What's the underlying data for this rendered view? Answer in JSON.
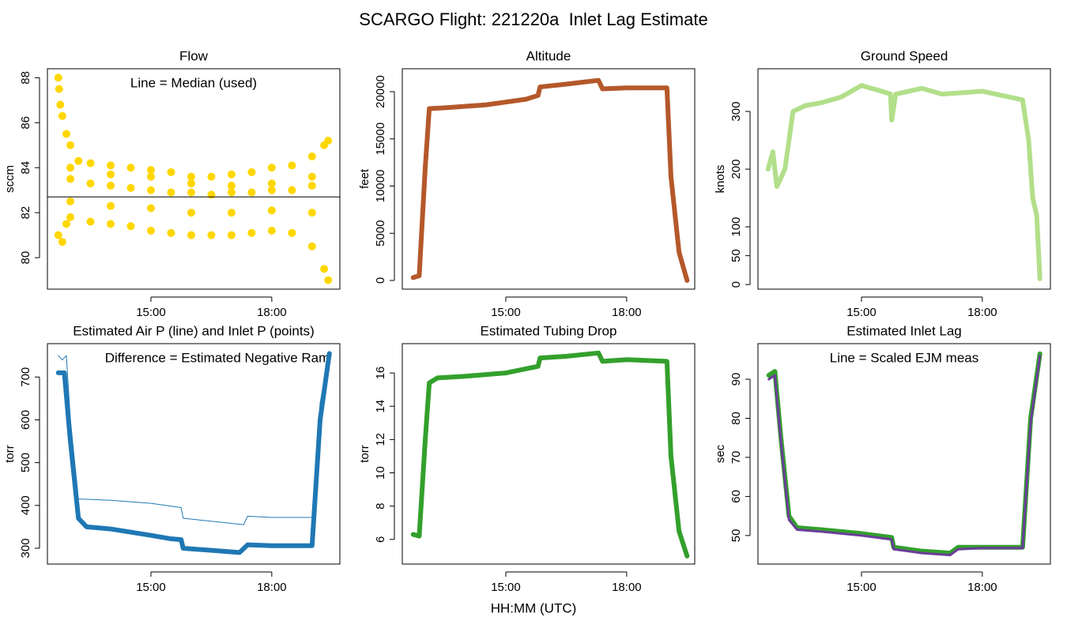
{
  "title": "SCARGO Flight: 221220a  Inlet Lag Estimate",
  "xlabel": "HH:MM (UTC)",
  "chart_data": [
    {
      "type": "scatter",
      "title": "Flow",
      "ylabel": "sccm",
      "annotation": "Line = Median (used)",
      "xlim": [
        12.43,
        19.69
      ],
      "ylim": [
        78.6,
        88.4
      ],
      "xticks": [
        {
          "value": 15,
          "label": "15:00"
        },
        {
          "value": 18,
          "label": "18:00"
        }
      ],
      "yticks": [
        80,
        82,
        84,
        86,
        88
      ],
      "reference_line": 82.7,
      "reference_color": "#000000",
      "series": [
        {
          "color": "#FFD700",
          "style": "points",
          "x": [
            12.7,
            12.72,
            12.75,
            12.8,
            12.9,
            13.0,
            13.2,
            13.5,
            14.0,
            14.5,
            15.0,
            15.5,
            16.0,
            16.5,
            17.0,
            17.5,
            18.0,
            18.5,
            19.0,
            19.3,
            19.4,
            12.7,
            12.8,
            12.9,
            13.0,
            13.5,
            14.0,
            14.5,
            15.0,
            15.5,
            16.0,
            16.5,
            17.0,
            17.5,
            18.0,
            18.5,
            19.0,
            19.3,
            19.4,
            13.0,
            13.5,
            14.0,
            14.5,
            15.0,
            15.5,
            16.0,
            16.5,
            17.0,
            17.5,
            18.0,
            18.5,
            19.0,
            13.0,
            14.0,
            15.0,
            16.0,
            17.0,
            18.0,
            19.0,
            13.0,
            14.0,
            15.0,
            16.0,
            17.0,
            18.0,
            19.0
          ],
          "values": [
            88,
            87.5,
            86.8,
            86.3,
            85.5,
            85.0,
            84.3,
            84.2,
            84.1,
            84.0,
            83.9,
            83.8,
            83.6,
            83.6,
            83.7,
            83.8,
            84.0,
            84.1,
            84.5,
            85.0,
            85.2,
            81.0,
            80.7,
            81.5,
            81.8,
            81.6,
            81.5,
            81.4,
            81.2,
            81.1,
            81.0,
            81.0,
            81.0,
            81.1,
            81.2,
            81.1,
            80.5,
            79.5,
            79.0,
            83.5,
            83.3,
            83.2,
            83.1,
            83.0,
            82.9,
            82.9,
            82.8,
            82.9,
            82.9,
            83.0,
            83.0,
            83.2,
            82.5,
            82.3,
            82.2,
            82.0,
            82.0,
            82.1,
            82.0,
            84.0,
            83.7,
            83.6,
            83.3,
            83.2,
            83.3,
            83.6
          ]
        }
      ]
    },
    {
      "type": "line",
      "title": "Altitude",
      "ylabel": "feet",
      "xlim": [
        12.43,
        19.69
      ],
      "ylim": [
        -920,
        22430
      ],
      "xticks": [
        {
          "value": 15,
          "label": "15:00"
        },
        {
          "value": 18,
          "label": "18:00"
        }
      ],
      "yticks": [
        0,
        5000,
        10000,
        15000,
        20000
      ],
      "series": [
        {
          "color": "#B5582A",
          "style": "thick",
          "x": [
            12.7,
            12.85,
            13.0,
            13.1,
            13.5,
            14.5,
            15.5,
            15.8,
            15.85,
            16.5,
            17.3,
            17.4,
            18.0,
            19.0,
            19.1,
            19.3,
            19.5
          ],
          "values": [
            300,
            500,
            12000,
            18200,
            18300,
            18600,
            19200,
            19600,
            20500,
            20800,
            21200,
            20300,
            20400,
            20400,
            11000,
            3000,
            0
          ]
        }
      ]
    },
    {
      "type": "line",
      "title": "Ground Speed",
      "ylabel": "knots",
      "xlim": [
        12.43,
        19.69
      ],
      "ylim": [
        -8,
        374
      ],
      "xticks": [
        {
          "value": 15,
          "label": "15:00"
        },
        {
          "value": 18,
          "label": "18:00"
        }
      ],
      "yticks": [
        0,
        50,
        100,
        200,
        300
      ],
      "series": [
        {
          "color": "#B2DF8A",
          "style": "thick",
          "x": [
            12.68,
            12.8,
            12.9,
            13.1,
            13.3,
            13.6,
            14.0,
            14.5,
            15.0,
            15.5,
            15.72,
            15.75,
            15.85,
            16.5,
            17.0,
            18.0,
            19.0,
            19.15,
            19.25,
            19.35,
            19.43
          ],
          "values": [
            200,
            230,
            170,
            200,
            300,
            310,
            315,
            325,
            345,
            335,
            330,
            285,
            330,
            340,
            330,
            335,
            320,
            250,
            150,
            120,
            10
          ]
        }
      ]
    },
    {
      "type": "line",
      "title": "Estimated Air P (line) and Inlet P (points)",
      "ylabel": "torr",
      "annotation": "Difference = Estimated Negative Ram",
      "xlim": [
        12.43,
        19.69
      ],
      "ylim": [
        263,
        778
      ],
      "xticks": [
        {
          "value": 15,
          "label": "15:00"
        },
        {
          "value": 18,
          "label": "18:00"
        }
      ],
      "yticks": [
        300,
        400,
        500,
        600,
        700
      ],
      "series": [
        {
          "color": "#1F78B4",
          "style": "thin",
          "x": [
            12.7,
            12.8,
            12.9,
            13.0,
            13.2,
            14.0,
            15.0,
            15.75,
            15.8,
            17.3,
            17.4,
            18.0,
            19.0,
            19.2,
            19.43
          ],
          "values": [
            750,
            740,
            750,
            600,
            415,
            412,
            405,
            395,
            370,
            355,
            375,
            372,
            372,
            640,
            755
          ]
        },
        {
          "color": "#1F78B4",
          "style": "thick",
          "x": [
            12.7,
            12.85,
            13.0,
            13.2,
            13.4,
            14.0,
            15.0,
            15.5,
            15.75,
            15.8,
            16.5,
            17.2,
            17.4,
            18.0,
            19.0,
            19.2,
            19.43
          ],
          "values": [
            710,
            710,
            550,
            370,
            350,
            345,
            330,
            322,
            320,
            300,
            295,
            290,
            308,
            306,
            306,
            600,
            755
          ]
        }
      ]
    },
    {
      "type": "line",
      "title": "Estimated Tubing Drop",
      "ylabel": "torr",
      "xlim": [
        12.43,
        19.69
      ],
      "ylim": [
        4.52,
        17.76
      ],
      "xticks": [
        {
          "value": 15,
          "label": "15:00"
        },
        {
          "value": 18,
          "label": "18:00"
        }
      ],
      "yticks": [
        6,
        8,
        10,
        12,
        14,
        16
      ],
      "series": [
        {
          "color": "#33A02C",
          "style": "thick",
          "x": [
            12.7,
            12.85,
            13.0,
            13.1,
            13.3,
            14.0,
            15.0,
            15.8,
            15.85,
            16.5,
            17.3,
            17.4,
            18.0,
            19.0,
            19.1,
            19.3,
            19.5
          ],
          "values": [
            6.3,
            6.2,
            12,
            15.4,
            15.7,
            15.8,
            16.0,
            16.4,
            16.9,
            17.0,
            17.2,
            16.7,
            16.8,
            16.7,
            11,
            6.5,
            5
          ]
        }
      ]
    },
    {
      "type": "line",
      "title": "Estimated Inlet Lag",
      "ylabel": "sec",
      "annotation": "Line = Scaled EJM meas",
      "xlim": [
        12.43,
        19.69
      ],
      "ylim": [
        42.7,
        99.1
      ],
      "xticks": [
        {
          "value": 15,
          "label": "15:00"
        },
        {
          "value": 18,
          "label": "18:00"
        }
      ],
      "yticks": [
        50,
        60,
        70,
        80,
        90
      ],
      "series": [
        {
          "color": "#33A02C",
          "style": "thick",
          "x": [
            12.7,
            12.85,
            13.0,
            13.2,
            13.4,
            14.0,
            15.0,
            15.75,
            15.8,
            16.5,
            17.2,
            17.4,
            18.0,
            19.0,
            19.2,
            19.43
          ],
          "values": [
            91,
            92,
            75,
            55,
            52,
            51.5,
            50.5,
            49.5,
            47,
            46,
            45.5,
            47,
            47,
            47,
            80,
            96.5
          ]
        },
        {
          "color": "#6A3D9A",
          "style": "medium",
          "x": [
            12.7,
            12.85,
            13.0,
            13.2,
            13.4,
            14.0,
            15.0,
            15.75,
            15.8,
            16.5,
            17.2,
            17.4,
            18.0,
            19.0,
            19.2,
            19.43
          ],
          "values": [
            90,
            91,
            74,
            54,
            51.5,
            51,
            50,
            49,
            46.5,
            45.5,
            45,
            46.5,
            46.8,
            46.8,
            79,
            96
          ]
        }
      ]
    }
  ]
}
